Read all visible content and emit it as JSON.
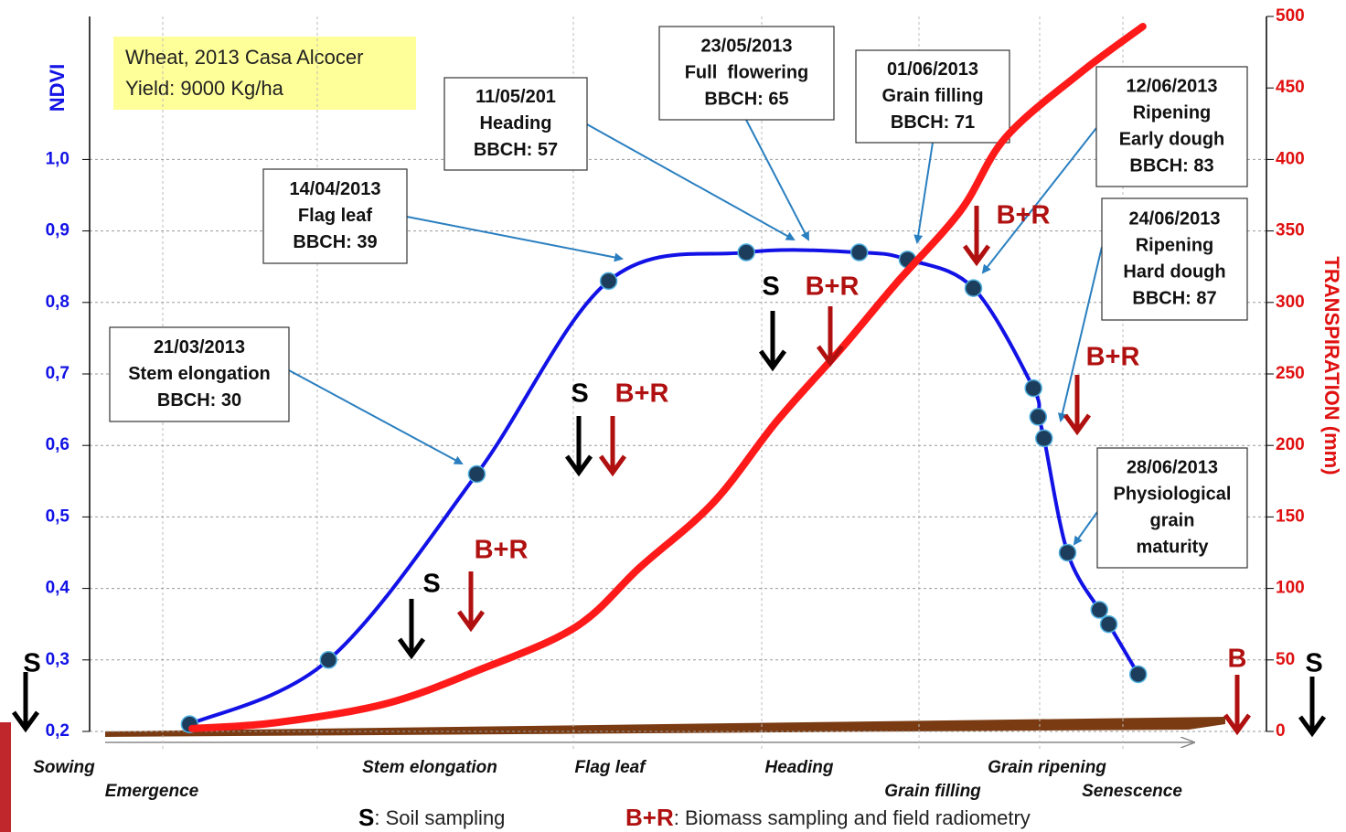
{
  "chart_data": {
    "type": "line",
    "info_box": [
      "Wheat, 2013 Casa Alcocer",
      "Yield: 9000 Kg/ha"
    ],
    "ylabel": "NDVI",
    "y2label": "TRANSPIRATION (mm)",
    "xlim": [
      0,
      100
    ],
    "ylim": [
      0.2,
      1.2
    ],
    "yticks": [
      {
        "value": 0.2,
        "label": "0,2"
      },
      {
        "value": 0.3,
        "label": "0,3"
      },
      {
        "value": 0.4,
        "label": "0,4"
      },
      {
        "value": 0.5,
        "label": "0,5"
      },
      {
        "value": 0.6,
        "label": "0,6"
      },
      {
        "value": 0.7,
        "label": "0,7"
      },
      {
        "value": 0.8,
        "label": "0,8"
      },
      {
        "value": 0.9,
        "label": "0,9"
      },
      {
        "value": 1.0,
        "label": "1,0"
      }
    ],
    "y2lim": [
      0,
      500
    ],
    "y2ticks": [
      0,
      50,
      100,
      150,
      200,
      250,
      300,
      350,
      400,
      450,
      500
    ],
    "grid": true,
    "series": [
      {
        "name": "NDVI",
        "color": "#1212e6",
        "marker_color": "#1d3d5c",
        "axis": "y",
        "x": [
          8.5,
          20.3,
          32.9,
          44.1,
          55.8,
          65.4,
          69.5,
          75.1,
          80.2,
          80.6,
          81.1,
          83.1,
          85.8,
          86.6,
          89.1
        ],
        "values": [
          0.21,
          0.3,
          0.56,
          0.83,
          0.87,
          0.87,
          0.86,
          0.82,
          0.68,
          0.64,
          0.61,
          0.45,
          0.37,
          0.35,
          0.28
        ]
      },
      {
        "name": "Transpiration",
        "color": "#ff1a1a",
        "axis": "y2",
        "x": [
          8.7,
          15.7,
          25.0,
          32.8,
          41.3,
          46.8,
          53.0,
          58.4,
          63.9,
          68.5,
          74.0,
          77.8,
          84.1,
          89.5
        ],
        "values": [
          2,
          6,
          19,
          42,
          73,
          115,
          160,
          217,
          268,
          313,
          364,
          415,
          460,
          493
        ]
      }
    ],
    "annotations": [
      {
        "lines": [
          "21/03/2013",
          "Stem elongation",
          "BBCH: 30"
        ]
      },
      {
        "lines": [
          "14/04/2013",
          "Flag leaf",
          "BBCH: 39"
        ]
      },
      {
        "lines": [
          "11/05/201",
          "Heading",
          "BBCH: 57"
        ]
      },
      {
        "lines": [
          "23/05/2013",
          "Full  flowering",
          "BBCH: 65"
        ]
      },
      {
        "lines": [
          "01/06/2013",
          "Grain filling",
          "BBCH: 71"
        ]
      },
      {
        "lines": [
          "12/06/2013",
          "Ripening",
          "Early dough",
          "BBCH: 83"
        ]
      },
      {
        "lines": [
          "24/06/2013",
          "Ripening",
          "Hard dough",
          "BBCH: 87"
        ]
      },
      {
        "lines": [
          "28/06/2013",
          "Physiological",
          "grain",
          "maturity"
        ]
      }
    ],
    "sampling_marks": [
      {
        "text": "S",
        "color": "#000000"
      },
      {
        "text": "S",
        "color": "#000000"
      },
      {
        "text": "B+R",
        "color": "#b01010"
      },
      {
        "text": "S",
        "color": "#000000"
      },
      {
        "text": "B+R",
        "color": "#b01010"
      },
      {
        "text": "S",
        "color": "#000000"
      },
      {
        "text": "B+R",
        "color": "#b01010"
      },
      {
        "text": "B+R",
        "color": "#b01010"
      },
      {
        "text": "B+R",
        "color": "#b01010"
      },
      {
        "text": "B",
        "color": "#b01010"
      },
      {
        "text": "S",
        "color": "#000000"
      }
    ],
    "stages": [
      "Sowing",
      "Emergence",
      "Stem elongation",
      "Flag leaf",
      "Heading",
      "Grain filling",
      "Grain ripening",
      "Senescence"
    ],
    "legend_notes": [
      {
        "key": "S",
        "text": ": Soil sampling",
        "color": "#000000"
      },
      {
        "key": "B+R",
        "text": ": Biomass sampling and field radiometry",
        "color": "#b01010"
      }
    ]
  }
}
